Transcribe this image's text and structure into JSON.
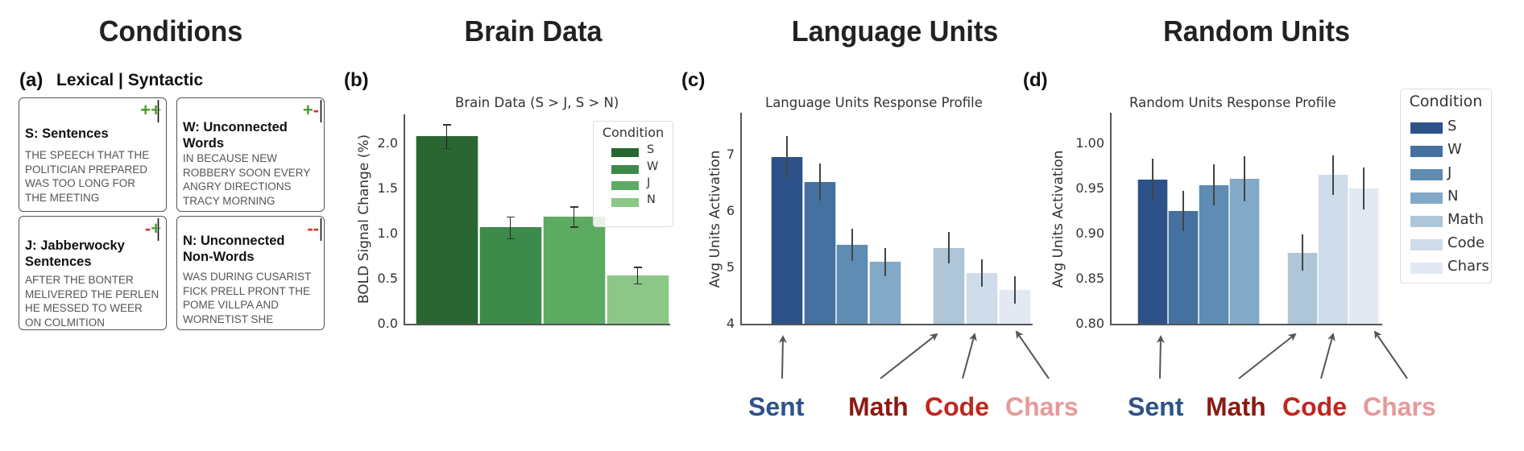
{
  "sections": {
    "conditions": "Conditions",
    "brain_data": "Brain Data",
    "language_units": "Language Units",
    "random_units": "Random Units"
  },
  "panel_labels": {
    "a": "(a)",
    "b": "(b)",
    "c": "(c)",
    "d": "(d)"
  },
  "conditions_panel": {
    "header": "Lexical | Syntactic",
    "cards": [
      {
        "title_line1": "S: Sentences",
        "title_line2": "",
        "lexical": "+",
        "syntactic": "+",
        "lines": [
          "THE SPEECH THAT THE",
          "POLITICIAN PREPARED",
          "WAS TOO LONG FOR",
          "THE MEETING"
        ]
      },
      {
        "title_line1": "W: Unconnected",
        "title_line2": "Words",
        "lexical": "+",
        "syntactic": "-",
        "lines": [
          "IN BECAUSE NEW",
          "ROBBERY SOON EVERY",
          "ANGRY DIRECTIONS",
          "TRACY MORNING"
        ]
      },
      {
        "title_line1": "J: Jabberwocky",
        "title_line2": "Sentences",
        "lexical": "-",
        "syntactic": "+",
        "lines": [
          "AFTER THE BONTER",
          "MELIVERED THE PERLEN",
          "HE MESSED TO WEER",
          "ON COLMITION"
        ]
      },
      {
        "title_line1": "N: Unconnected",
        "title_line2": "Non-Words",
        "lexical": "-",
        "syntactic": "-",
        "lines": [
          "WAS DURING CUSARIST",
          "FICK PRELL PRONT THE",
          "POME VILLPA AND",
          "WORNETIST SHE"
        ]
      }
    ]
  },
  "annotations": {
    "language": [
      {
        "label": "Sent",
        "color": "#2c5289"
      },
      {
        "label": "Math",
        "color": "#8b1a12"
      },
      {
        "label": "Code",
        "color": "#c0271f"
      },
      {
        "label": "Chars",
        "color": "#e59a9a"
      }
    ],
    "random": [
      {
        "label": "Sent",
        "color": "#2c5289"
      },
      {
        "label": "Math",
        "color": "#8b1a12"
      },
      {
        "label": "Code",
        "color": "#c0271f"
      },
      {
        "label": "Chars",
        "color": "#e59a9a"
      }
    ]
  },
  "chart_data": [
    {
      "type": "bar",
      "title": "Brain Data (S > J, S > N)",
      "xlabel": "",
      "ylabel": "BOLD Signal Change (%)",
      "ylim": [
        0,
        2.3
      ],
      "yticks": [
        "0.0",
        "0.5",
        "1.0",
        "1.5",
        "2.0"
      ],
      "grid": false,
      "legend": {
        "title": "Condition",
        "position": "upper right",
        "entries": [
          "S",
          "W",
          "J",
          "N"
        ]
      },
      "categories": [
        "S",
        "W",
        "J",
        "N"
      ],
      "values": [
        2.08,
        1.07,
        1.19,
        0.54
      ],
      "error": [
        0.13,
        0.12,
        0.11,
        0.09
      ],
      "colors": [
        "#2a6632",
        "#3d8a4b",
        "#5dab63",
        "#8cc788"
      ]
    },
    {
      "type": "bar",
      "title": "Language Units Response Profile",
      "xlabel": "",
      "ylabel": "Avg Units Activation",
      "ylim": [
        4,
        7.7
      ],
      "yticks": [
        "4",
        "5",
        "6",
        "7"
      ],
      "grid": false,
      "categories": [
        "S",
        "W",
        "J",
        "N",
        "Math",
        "Code",
        "Chars"
      ],
      "values": [
        6.96,
        6.52,
        5.4,
        5.1,
        5.35,
        4.9,
        4.6
      ],
      "error": [
        0.37,
        0.33,
        0.28,
        0.25,
        0.28,
        0.24,
        0.24
      ],
      "colors": [
        "#2c5289",
        "#44719f",
        "#5e8cb2",
        "#82a9c7",
        "#aec6d7",
        "#cfdce9",
        "#e2e9f2"
      ]
    },
    {
      "type": "bar",
      "title": "Random Units Response Profile",
      "xlabel": "",
      "ylabel": "Avg Units Activation",
      "ylim": [
        0.8,
        1.035
      ],
      "yticks": [
        "0.80",
        "0.85",
        "0.90",
        "0.95",
        "1.00"
      ],
      "grid": false,
      "legend": {
        "title": "Condition",
        "position": "outside right",
        "entries": [
          "S",
          "W",
          "J",
          "N",
          "Math",
          "Code",
          "Chars"
        ]
      },
      "categories": [
        "S",
        "W",
        "J",
        "N",
        "Math",
        "Code",
        "Chars"
      ],
      "values": [
        0.96,
        0.925,
        0.954,
        0.961,
        0.879,
        0.965,
        0.95
      ],
      "error": [
        0.023,
        0.022,
        0.023,
        0.025,
        0.02,
        0.022,
        0.023
      ],
      "colors": [
        "#2c5289",
        "#44719f",
        "#5e8cb2",
        "#82a9c7",
        "#aec6d7",
        "#cfdce9",
        "#e2e9f2"
      ]
    }
  ]
}
